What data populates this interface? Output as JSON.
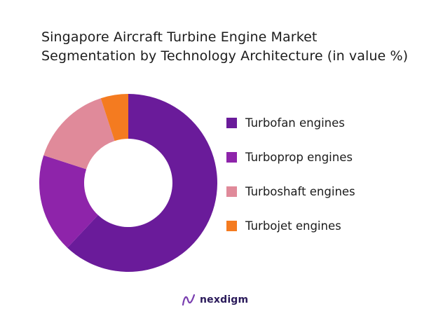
{
  "chart_data": {
    "type": "pie",
    "title_lines": [
      "Singapore Aircraft Turbine Engine Market",
      "Segmentation by Technology Architecture (in value %)"
    ],
    "donut": true,
    "legend_position": "right",
    "series": [
      {
        "name": "Turbofan engines",
        "value": 62,
        "color": "#6a1b9a"
      },
      {
        "name": "Turboprop engines",
        "value": 18,
        "color": "#8e24aa"
      },
      {
        "name": "Turboshaft engines",
        "value": 15,
        "color": "#e08a9a"
      },
      {
        "name": "Turbojet engines",
        "value": 5,
        "color": "#f47b20"
      }
    ]
  },
  "branding": {
    "name": "nexdigm",
    "colors": [
      "#7a3fb0",
      "#2a1a5a"
    ]
  }
}
